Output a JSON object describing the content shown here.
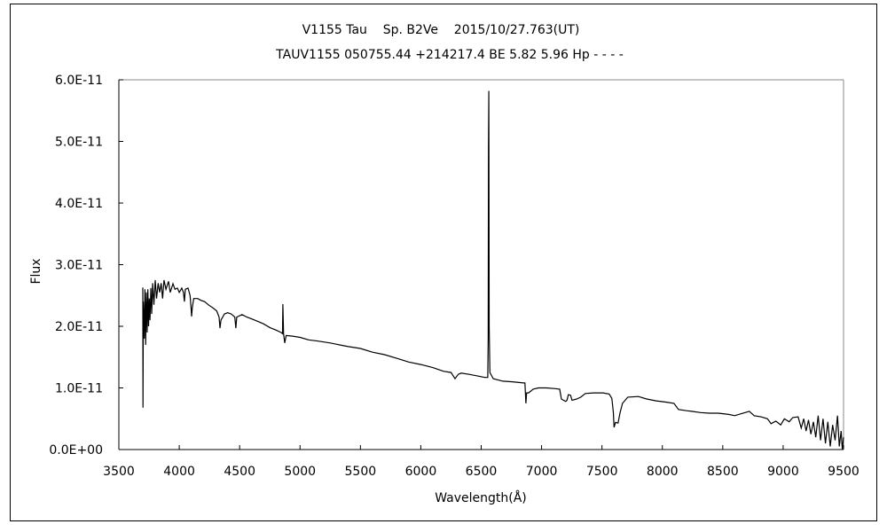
{
  "chart_data": {
    "type": "line",
    "title": "V1155 Tau    Sp. B2Ve    2015/10/27.763(UT)",
    "subtitle": "TAUV1155 050755.44 +214217.4 BE 5.82 5.96 Hp - - - -",
    "xlabel": "Wavelength(Å)",
    "ylabel": "Flux",
    "xlim": [
      3500,
      9500
    ],
    "ylim": [
      0,
      6e-11
    ],
    "xticks": [
      "3500",
      "4000",
      "4500",
      "5000",
      "5500",
      "6000",
      "6500",
      "7000",
      "7500",
      "8000",
      "8500",
      "9000",
      "9500"
    ],
    "yticks": [
      "0.0E+00",
      "1.0E-11",
      "2.0E-11",
      "3.0E-11",
      "4.0E-11",
      "5.0E-11",
      "6.0E-11"
    ],
    "grid": false,
    "legend": "none",
    "line_color": "#000000",
    "series": [
      {
        "points": [
          [
            3698,
            2.63e-11
          ],
          [
            3700,
            6.8e-12
          ],
          [
            3703,
            2.4e-11
          ],
          [
            3710,
            1.8e-11
          ],
          [
            3716,
            2.6e-11
          ],
          [
            3722,
            1.7e-11
          ],
          [
            3728,
            2.55e-11
          ],
          [
            3734,
            1.9e-11
          ],
          [
            3740,
            2.6e-11
          ],
          [
            3746,
            2e-11
          ],
          [
            3752,
            2.45e-11
          ],
          [
            3758,
            2.1e-11
          ],
          [
            3765,
            2.62e-11
          ],
          [
            3772,
            2.2e-11
          ],
          [
            3780,
            2.7e-11
          ],
          [
            3790,
            2.35e-11
          ],
          [
            3801,
            2.75e-11
          ],
          [
            3812,
            2.45e-11
          ],
          [
            3825,
            2.7e-11
          ],
          [
            3838,
            2.55e-11
          ],
          [
            3850,
            2.7e-11
          ],
          [
            3862,
            2.45e-11
          ],
          [
            3874,
            2.75e-11
          ],
          [
            3890,
            2.6e-11
          ],
          [
            3911,
            2.73e-11
          ],
          [
            3925,
            2.55e-11
          ],
          [
            3948,
            2.69e-11
          ],
          [
            3965,
            2.6e-11
          ],
          [
            3985,
            2.62e-11
          ],
          [
            4000,
            2.55e-11
          ],
          [
            4021,
            2.62e-11
          ],
          [
            4035,
            2.55e-11
          ],
          [
            4043,
            2.4e-11
          ],
          [
            4050,
            2.6e-11
          ],
          [
            4073,
            2.62e-11
          ],
          [
            4090,
            2.5e-11
          ],
          [
            4098,
            2.3e-11
          ],
          [
            4102,
            2.16e-11
          ],
          [
            4108,
            2.3e-11
          ],
          [
            4120,
            2.45e-11
          ],
          [
            4153,
            2.45e-11
          ],
          [
            4180,
            2.42e-11
          ],
          [
            4210,
            2.4e-11
          ],
          [
            4240,
            2.35e-11
          ],
          [
            4278,
            2.3e-11
          ],
          [
            4310,
            2.25e-11
          ],
          [
            4330,
            2.15e-11
          ],
          [
            4337,
            1.97e-11
          ],
          [
            4345,
            2.1e-11
          ],
          [
            4374,
            2.2e-11
          ],
          [
            4400,
            2.22e-11
          ],
          [
            4430,
            2.2e-11
          ],
          [
            4460,
            2.15e-11
          ],
          [
            4469,
            1.97e-11
          ],
          [
            4476,
            2.15e-11
          ],
          [
            4520,
            2.19e-11
          ],
          [
            4560,
            2.15e-11
          ],
          [
            4600,
            2.12e-11
          ],
          [
            4650,
            2.08e-11
          ],
          [
            4697,
            2.04e-11
          ],
          [
            4750,
            1.98e-11
          ],
          [
            4800,
            1.94e-11
          ],
          [
            4843,
            1.9e-11
          ],
          [
            4855,
            1.88e-11
          ],
          [
            4858,
            2.36e-11
          ],
          [
            4864,
            1.88e-11
          ],
          [
            4873,
            1.73e-11
          ],
          [
            4885,
            1.85e-11
          ],
          [
            4939,
            1.84e-11
          ],
          [
            5000,
            1.82e-11
          ],
          [
            5071,
            1.78e-11
          ],
          [
            5150,
            1.76e-11
          ],
          [
            5250,
            1.73e-11
          ],
          [
            5300,
            1.71e-11
          ],
          [
            5400,
            1.67e-11
          ],
          [
            5500,
            1.64e-11
          ],
          [
            5600,
            1.58e-11
          ],
          [
            5700,
            1.54e-11
          ],
          [
            5800,
            1.48e-11
          ],
          [
            5900,
            1.42e-11
          ],
          [
            6000,
            1.38e-11
          ],
          [
            6100,
            1.33e-11
          ],
          [
            6187,
            1.27e-11
          ],
          [
            6250,
            1.25e-11
          ],
          [
            6283,
            1.15e-11
          ],
          [
            6310,
            1.22e-11
          ],
          [
            6334,
            1.24e-11
          ],
          [
            6400,
            1.22e-11
          ],
          [
            6481,
            1.19e-11
          ],
          [
            6530,
            1.17e-11
          ],
          [
            6554,
            1.17e-11
          ],
          [
            6558,
            1.8e-11
          ],
          [
            6560,
            4.9e-11
          ],
          [
            6563,
            5.82e-11
          ],
          [
            6566,
            2e-11
          ],
          [
            6572,
            1.25e-11
          ],
          [
            6600,
            1.15e-11
          ],
          [
            6679,
            1.11e-11
          ],
          [
            6760,
            1.1e-11
          ],
          [
            6848,
            1.08e-11
          ],
          [
            6862,
            1.08e-11
          ],
          [
            6870,
            7.5e-12
          ],
          [
            6876,
            9.2e-12
          ],
          [
            6892,
            9.2e-12
          ],
          [
            6930,
            9.8e-12
          ],
          [
            6973,
            1e-11
          ],
          [
            7040,
            1e-11
          ],
          [
            7105,
            9.9e-12
          ],
          [
            7150,
            9.8e-12
          ],
          [
            7164,
            8.2e-12
          ],
          [
            7200,
            7.8e-12
          ],
          [
            7210,
            8e-12
          ],
          [
            7222,
            8.9e-12
          ],
          [
            7240,
            8.8e-12
          ],
          [
            7252,
            8e-12
          ],
          [
            7290,
            8.2e-12
          ],
          [
            7325,
            8.5e-12
          ],
          [
            7362,
            9.1e-12
          ],
          [
            7430,
            9.2e-12
          ],
          [
            7509,
            9.2e-12
          ],
          [
            7560,
            9e-12
          ],
          [
            7582,
            8.3e-12
          ],
          [
            7594,
            6e-12
          ],
          [
            7600,
            3.6e-12
          ],
          [
            7612,
            4.4e-12
          ],
          [
            7633,
            4.3e-12
          ],
          [
            7650,
            6e-12
          ],
          [
            7670,
            7.5e-12
          ],
          [
            7714,
            8.5e-12
          ],
          [
            7802,
            8.6e-12
          ],
          [
            7870,
            8.2e-12
          ],
          [
            7949,
            7.9e-12
          ],
          [
            8030,
            7.7e-12
          ],
          [
            8096,
            7.5e-12
          ],
          [
            8133,
            6.5e-12
          ],
          [
            8200,
            6.3e-12
          ],
          [
            8243,
            6.2e-12
          ],
          [
            8316,
            6e-12
          ],
          [
            8390,
            5.9e-12
          ],
          [
            8463,
            5.9e-12
          ],
          [
            8550,
            5.7e-12
          ],
          [
            8600,
            5.5e-12
          ],
          [
            8650,
            5.8e-12
          ],
          [
            8720,
            6.2e-12
          ],
          [
            8760,
            5.5e-12
          ],
          [
            8820,
            5.3e-12
          ],
          [
            8870,
            5e-12
          ],
          [
            8900,
            4.2e-12
          ],
          [
            8940,
            4.6e-12
          ],
          [
            8980,
            4e-12
          ],
          [
            9010,
            5e-12
          ],
          [
            9050,
            4.5e-12
          ],
          [
            9080,
            5.2e-12
          ],
          [
            9124,
            5.3e-12
          ],
          [
            9150,
            3.5e-12
          ],
          [
            9170,
            5e-12
          ],
          [
            9190,
            3e-12
          ],
          [
            9210,
            4.8e-12
          ],
          [
            9230,
            2.5e-12
          ],
          [
            9250,
            4.5e-12
          ],
          [
            9270,
            2e-12
          ],
          [
            9290,
            5.5e-12
          ],
          [
            9310,
            1.5e-12
          ],
          [
            9330,
            5e-12
          ],
          [
            9350,
            1e-12
          ],
          [
            9370,
            4.5e-12
          ],
          [
            9390,
            5e-13
          ],
          [
            9410,
            4e-12
          ],
          [
            9430,
            1.5e-12
          ],
          [
            9450,
            5.5e-12
          ],
          [
            9465,
            5e-13
          ],
          [
            9480,
            3e-12
          ],
          [
            9490,
            0.0
          ],
          [
            9500,
            2e-12
          ]
        ]
      }
    ]
  }
}
